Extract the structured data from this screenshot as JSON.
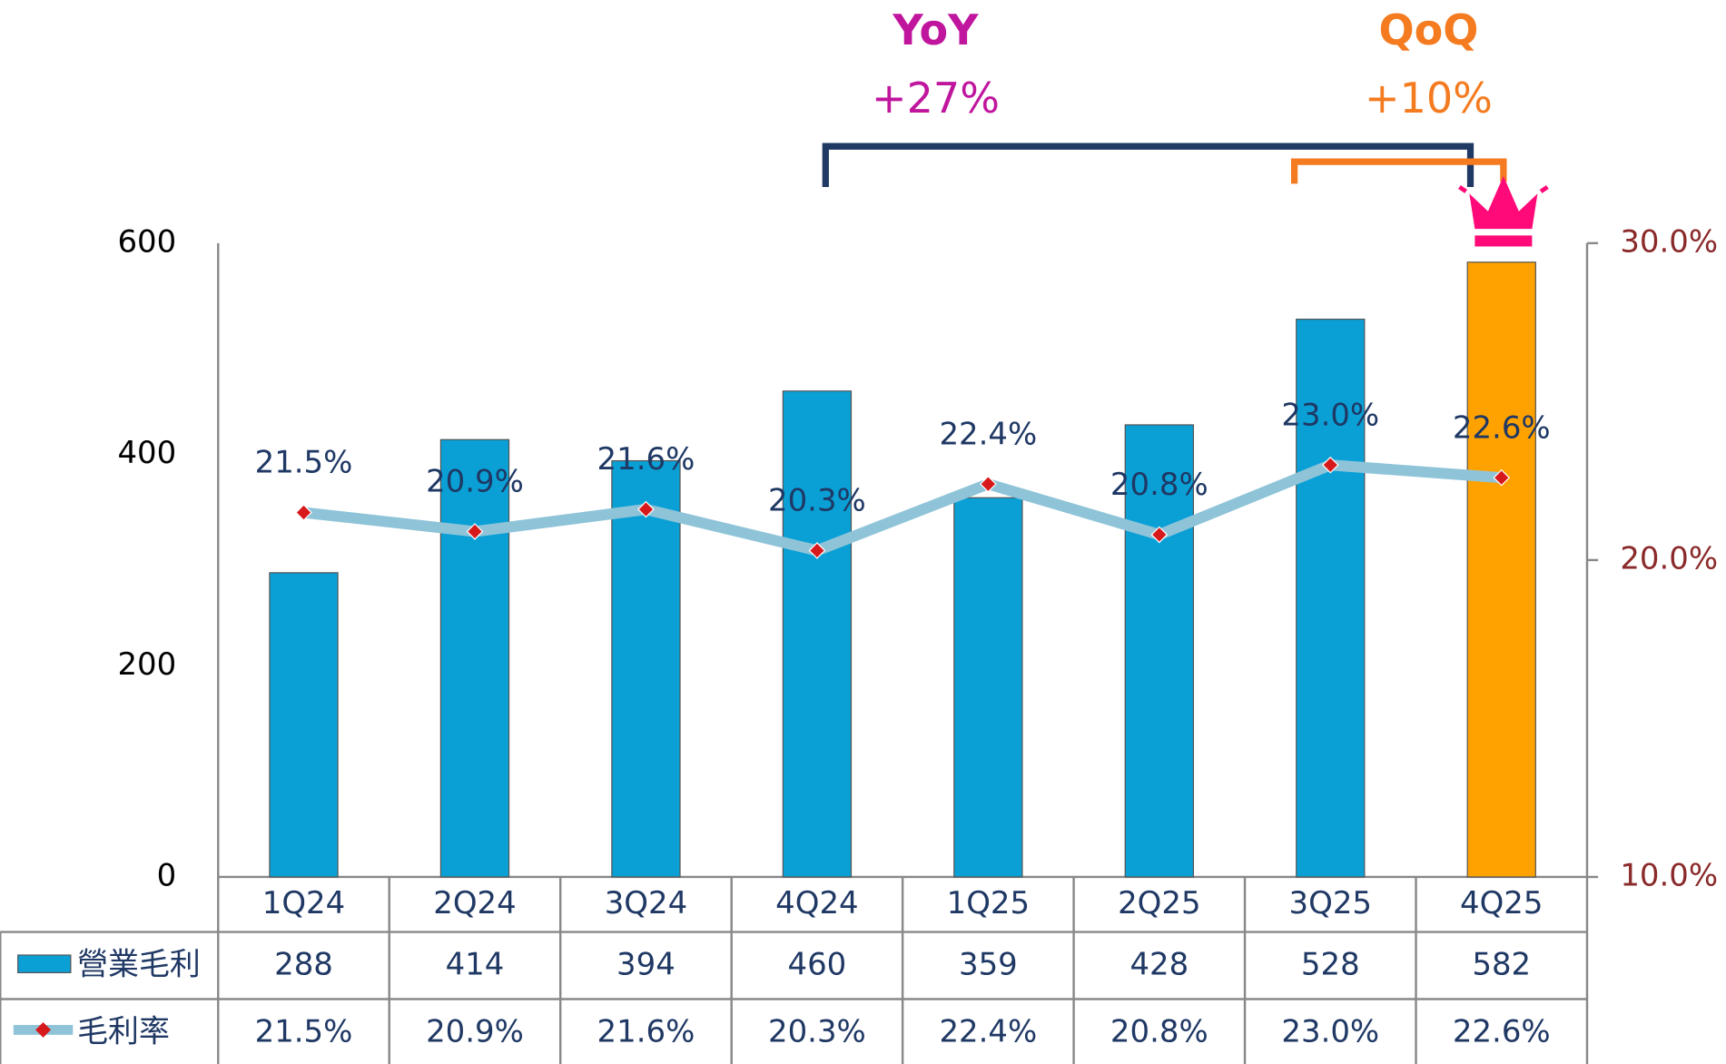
{
  "chart_data": {
    "type": "bar",
    "categories": [
      "1Q24",
      "2Q24",
      "3Q24",
      "4Q24",
      "1Q25",
      "2Q25",
      "3Q25",
      "4Q25"
    ],
    "series": [
      {
        "name": "營業毛利",
        "type": "bar",
        "color": "#0aa0d6",
        "colors": [
          "#0aa0d6",
          "#0aa0d6",
          "#0aa0d6",
          "#0aa0d6",
          "#0aa0d6",
          "#0aa0d6",
          "#0aa0d6",
          "#ffa200"
        ],
        "values": [
          288,
          414,
          394,
          460,
          359,
          428,
          528,
          582
        ]
      },
      {
        "name": "毛利率",
        "type": "line",
        "axis": "y2",
        "color": "#8fc4d8",
        "marker_color": "#d7191c",
        "values": [
          21.5,
          20.9,
          21.6,
          20.3,
          22.4,
          20.8,
          23.0,
          22.6
        ],
        "value_labels": [
          "21.5%",
          "20.9%",
          "21.6%",
          "20.3%",
          "22.4%",
          "20.8%",
          "23.0%",
          "22.6%"
        ]
      }
    ],
    "ylim": [
      0,
      600
    ],
    "yticks": [
      0,
      200,
      400,
      600
    ],
    "y2lim": [
      10,
      30
    ],
    "y2ticks": [
      {
        "value": 10,
        "label": "10.0%"
      },
      {
        "value": 20,
        "label": "20.0%"
      },
      {
        "value": 30,
        "label": "30.0%"
      }
    ],
    "annotations": [
      {
        "title": "YoY",
        "text": "+27%",
        "color": "#c0169e"
      },
      {
        "title": "QoQ",
        "text": "+10%",
        "color": "#f47b20"
      }
    ]
  }
}
